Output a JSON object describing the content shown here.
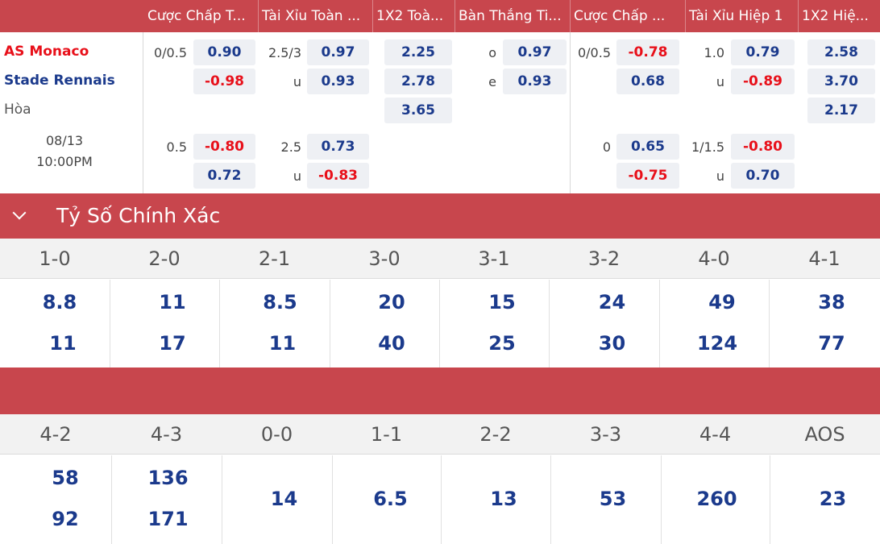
{
  "header": {
    "columns": [
      "Cược Chấp T...",
      "Tài Xỉu Toàn ...",
      "1X2 Toà...",
      "Bàn Thắng Ti...",
      "Cược Chấp ...",
      "Tài Xỉu Hiệp 1",
      "1X2 Hiệ..."
    ]
  },
  "match": {
    "home": "AS Monaco",
    "away": "Stade Rennais",
    "draw": "Hòa",
    "date": "08/13",
    "time": "10:00PM",
    "rows": [
      {
        "hcp_line": "0/0.5",
        "hcp_home": "0.90",
        "hcp_away": "-0.98",
        "ou_line": "2.5/3",
        "ou_u": "u",
        "ou_over": "0.97",
        "ou_under": "0.93",
        "x12_home": "2.25",
        "x12_away": "2.78",
        "x12_draw": "3.65",
        "oe_o": "o",
        "oe_e": "e",
        "oe_odd": "0.97",
        "oe_even": "0.93",
        "h1_hcp_line": "0/0.5",
        "h1_hcp_home": "-0.78",
        "h1_hcp_away": "0.68",
        "h1_ou_line": "1.0",
        "h1_ou_u": "u",
        "h1_ou_over": "0.79",
        "h1_ou_under": "-0.89",
        "h1_x12_home": "2.58",
        "h1_x12_away": "3.70",
        "h1_x12_draw": "2.17"
      },
      {
        "hcp_line": "0.5",
        "hcp_home": "-0.80",
        "hcp_away": "0.72",
        "ou_line": "2.5",
        "ou_u": "u",
        "ou_over": "0.73",
        "ou_under": "-0.83",
        "h1_hcp_line": "0",
        "h1_hcp_home": "0.65",
        "h1_hcp_away": "-0.75",
        "h1_ou_line": "1/1.5",
        "h1_ou_u": "u",
        "h1_ou_over": "-0.80",
        "h1_ou_under": "0.70"
      }
    ]
  },
  "correct_score": {
    "title": "Tỷ Số Chính Xác",
    "block1": {
      "scores": [
        "1-0",
        "2-0",
        "2-1",
        "3-0",
        "3-1",
        "3-2",
        "4-0",
        "4-1"
      ],
      "home": [
        "8.8",
        "11",
        "8.5",
        "20",
        "15",
        "24",
        "49",
        "38"
      ],
      "away": [
        "11",
        "17",
        "11",
        "40",
        "25",
        "30",
        "124",
        "77"
      ]
    },
    "block2": {
      "scores": [
        "4-2",
        "4-3",
        "0-0",
        "1-1",
        "2-2",
        "3-3",
        "4-4",
        "AOS"
      ],
      "home": [
        "58",
        "136"
      ],
      "away": [
        "92",
        "171"
      ],
      "single": [
        "14",
        "6.5",
        "13",
        "53",
        "260",
        "23"
      ]
    }
  },
  "colors": {
    "accent": "#c8464d",
    "positive": "#1b3a8c",
    "negative": "#e8101a"
  }
}
